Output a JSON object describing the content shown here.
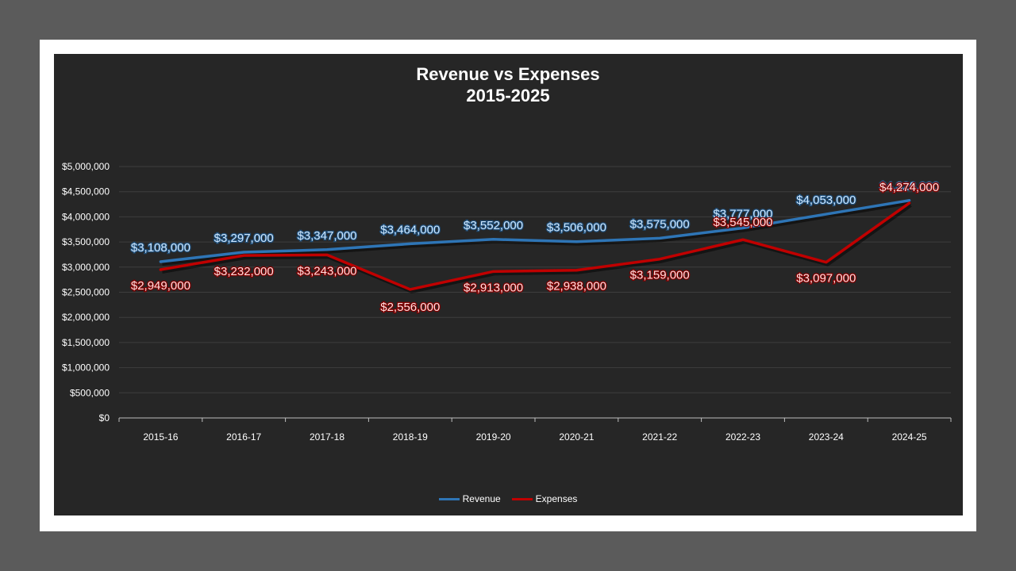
{
  "colors": {
    "outer_background": "#5b5b5b",
    "frame": "#ffffff",
    "plot_background": "#262626",
    "revenue": "#2e75b6",
    "expenses": "#c00000",
    "revenue_label": "#cfe8ff",
    "expenses_label": "#ffe0e0"
  },
  "chart_data": {
    "type": "line",
    "title": "Revenue vs Expenses",
    "subtitle": "2015-2025",
    "xlabel": "",
    "ylabel": "",
    "categories": [
      "2015-16",
      "2016-17",
      "2017-18",
      "2018-19",
      "2019-20",
      "2020-21",
      "2021-22",
      "2022-23",
      "2023-24",
      "2024-25"
    ],
    "ylim": [
      0,
      5000000
    ],
    "yticks": [
      0,
      500000,
      1000000,
      1500000,
      2000000,
      2500000,
      3000000,
      3500000,
      4000000,
      4500000,
      5000000
    ],
    "ytick_labels": [
      "$0",
      "$500,000",
      "$1,000,000",
      "$1,500,000",
      "$2,000,000",
      "$2,500,000",
      "$3,000,000",
      "$3,500,000",
      "$4,000,000",
      "$4,500,000",
      "$5,000,000"
    ],
    "grid": true,
    "legend_position": "bottom",
    "series": [
      {
        "name": "Revenue",
        "values": [
          3108000,
          3297000,
          3347000,
          3464000,
          3552000,
          3506000,
          3575000,
          3777000,
          4053000,
          4326000
        ],
        "labels": [
          "$3,108,000",
          "$3,297,000",
          "$3,347,000",
          "$3,464,000",
          "$3,552,000",
          "$3,506,000",
          "$3,575,000",
          "$3,777,000",
          "$4,053,000",
          "$4,326,000"
        ]
      },
      {
        "name": "Expenses",
        "values": [
          2949000,
          3232000,
          3243000,
          2556000,
          2913000,
          2938000,
          3159000,
          3545000,
          3097000,
          4274000
        ],
        "labels": [
          "$2,949,000",
          "$3,232,000",
          "$3,243,000",
          "$2,556,000",
          "$2,913,000",
          "$2,938,000",
          "$3,159,000",
          "$3,545,000",
          "$3,097,000",
          "$4,274,000"
        ]
      }
    ]
  }
}
